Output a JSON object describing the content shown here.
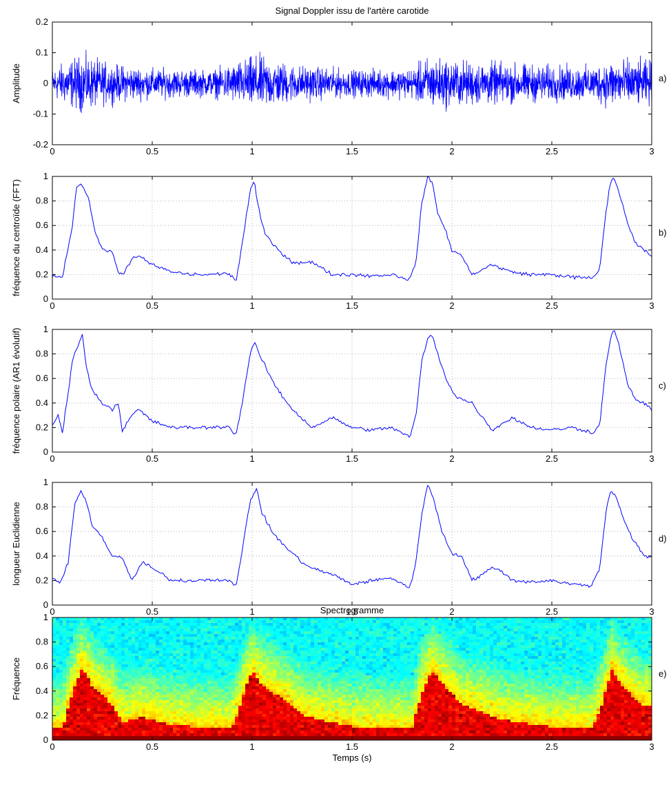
{
  "figure": {
    "title": "Signal Doppler issu de l'artère carotide",
    "xlabel": "Temps (s)"
  },
  "colors": {
    "line": "#0000ff",
    "grid": "#a0a0a0",
    "axes": "#000000"
  },
  "chart_data": [
    {
      "id": "a",
      "type": "line",
      "panel_label": "a)",
      "title": "Signal Doppler issu de l'artère carotide",
      "xlabel": "",
      "ylabel": "Amplitude",
      "xlim": [
        0,
        3
      ],
      "ylim": [
        -0.2,
        0.2
      ],
      "xticks": [
        0,
        0.5,
        1,
        1.5,
        2,
        2.5,
        3
      ],
      "yticks": [
        -0.2,
        -0.1,
        0,
        0.1,
        0.2
      ],
      "grid": false,
      "signal": "noise-like Doppler signal, envelope peaks near 0.15 at systole (~0.15 s, 1.0 s, 1.9 s, 2.8 s)",
      "envelope": {
        "x": [
          0,
          0.1,
          0.15,
          0.3,
          0.5,
          0.8,
          0.95,
          1.02,
          1.2,
          1.5,
          1.8,
          1.88,
          2.05,
          2.4,
          2.7,
          2.8,
          3.0
        ],
        "y": [
          0.08,
          0.13,
          0.15,
          0.1,
          0.08,
          0.07,
          0.12,
          0.15,
          0.1,
          0.07,
          0.08,
          0.14,
          0.12,
          0.1,
          0.09,
          0.13,
          0.12
        ]
      }
    },
    {
      "id": "b",
      "type": "line",
      "panel_label": "b)",
      "xlabel": "",
      "ylabel": "fréquence du centroïde (FFT)",
      "xlim": [
        0,
        3
      ],
      "ylim": [
        0,
        1
      ],
      "xticks": [
        0,
        0.5,
        1,
        1.5,
        2,
        2.5,
        3
      ],
      "yticks": [
        0,
        0.2,
        0.4,
        0.6,
        0.8,
        1
      ],
      "grid": true,
      "x": [
        0,
        0.05,
        0.1,
        0.12,
        0.14,
        0.18,
        0.22,
        0.26,
        0.3,
        0.33,
        0.35,
        0.4,
        0.43,
        0.5,
        0.6,
        0.7,
        0.8,
        0.88,
        0.92,
        0.95,
        0.99,
        1.01,
        1.03,
        1.06,
        1.1,
        1.2,
        1.3,
        1.4,
        1.5,
        1.6,
        1.7,
        1.79,
        1.82,
        1.85,
        1.88,
        1.9,
        1.93,
        1.97,
        2.0,
        2.05,
        2.1,
        2.2,
        2.3,
        2.4,
        2.5,
        2.6,
        2.71,
        2.74,
        2.77,
        2.79,
        2.81,
        2.84,
        2.88,
        2.92,
        2.96,
        3.0
      ],
      "y": [
        0.19,
        0.18,
        0.6,
        0.9,
        0.95,
        0.83,
        0.5,
        0.4,
        0.38,
        0.22,
        0.2,
        0.33,
        0.35,
        0.28,
        0.22,
        0.2,
        0.2,
        0.21,
        0.15,
        0.45,
        0.88,
        0.97,
        0.75,
        0.55,
        0.45,
        0.3,
        0.3,
        0.2,
        0.2,
        0.19,
        0.2,
        0.16,
        0.3,
        0.8,
        1.0,
        0.95,
        0.7,
        0.55,
        0.4,
        0.35,
        0.2,
        0.28,
        0.22,
        0.2,
        0.2,
        0.18,
        0.17,
        0.25,
        0.7,
        0.92,
        1.0,
        0.85,
        0.62,
        0.45,
        0.4,
        0.35
      ]
    },
    {
      "id": "c",
      "type": "line",
      "panel_label": "c)",
      "xlabel": "",
      "ylabel": "fréquence polaire (AR1 évolutif)",
      "xlim": [
        0,
        3
      ],
      "ylim": [
        0,
        1
      ],
      "xticks": [
        0,
        0.5,
        1,
        1.5,
        2,
        2.5,
        3
      ],
      "yticks": [
        0,
        0.2,
        0.4,
        0.6,
        0.8,
        1
      ],
      "grid": true,
      "x": [
        0,
        0.03,
        0.05,
        0.08,
        0.1,
        0.13,
        0.15,
        0.17,
        0.2,
        0.25,
        0.3,
        0.33,
        0.35,
        0.4,
        0.43,
        0.5,
        0.6,
        0.7,
        0.8,
        0.88,
        0.92,
        0.95,
        0.99,
        1.01,
        1.04,
        1.08,
        1.13,
        1.2,
        1.3,
        1.4,
        1.5,
        1.6,
        1.7,
        1.79,
        1.82,
        1.85,
        1.88,
        1.9,
        1.93,
        1.97,
        2.02,
        2.1,
        2.2,
        2.3,
        2.4,
        2.5,
        2.6,
        2.71,
        2.74,
        2.77,
        2.79,
        2.81,
        2.84,
        2.88,
        2.92,
        2.96,
        3.0
      ],
      "y": [
        0.22,
        0.3,
        0.15,
        0.5,
        0.75,
        0.88,
        0.95,
        0.7,
        0.5,
        0.4,
        0.35,
        0.4,
        0.18,
        0.3,
        0.35,
        0.25,
        0.2,
        0.2,
        0.2,
        0.21,
        0.14,
        0.4,
        0.8,
        0.9,
        0.78,
        0.65,
        0.5,
        0.35,
        0.2,
        0.28,
        0.2,
        0.18,
        0.2,
        0.12,
        0.3,
        0.75,
        0.93,
        0.95,
        0.8,
        0.6,
        0.45,
        0.4,
        0.18,
        0.28,
        0.2,
        0.18,
        0.2,
        0.16,
        0.22,
        0.7,
        0.9,
        1.0,
        0.85,
        0.55,
        0.42,
        0.4,
        0.35
      ]
    },
    {
      "id": "d",
      "type": "line",
      "panel_label": "d)",
      "xlabel": "",
      "ylabel": "longueur Euclidienne",
      "xlim": [
        0,
        3
      ],
      "ylim": [
        0,
        1
      ],
      "xticks": [
        0,
        0.5,
        1,
        1.5,
        2,
        2.5,
        3
      ],
      "yticks": [
        0,
        0.2,
        0.4,
        0.6,
        0.8,
        1
      ],
      "grid": true,
      "x": [
        0,
        0.04,
        0.08,
        0.11,
        0.14,
        0.17,
        0.2,
        0.25,
        0.3,
        0.35,
        0.4,
        0.45,
        0.5,
        0.6,
        0.7,
        0.8,
        0.88,
        0.92,
        0.95,
        0.99,
        1.02,
        1.05,
        1.1,
        1.15,
        1.25,
        1.3,
        1.4,
        1.5,
        1.6,
        1.7,
        1.79,
        1.82,
        1.85,
        1.88,
        1.91,
        1.95,
        2.0,
        2.05,
        2.1,
        2.2,
        2.25,
        2.3,
        2.4,
        2.5,
        2.6,
        2.7,
        2.74,
        2.77,
        2.79,
        2.82,
        2.86,
        2.9,
        2.94,
        2.98,
        3.0
      ],
      "y": [
        0.22,
        0.18,
        0.35,
        0.8,
        0.93,
        0.85,
        0.65,
        0.55,
        0.4,
        0.38,
        0.2,
        0.35,
        0.3,
        0.2,
        0.2,
        0.21,
        0.2,
        0.15,
        0.45,
        0.85,
        0.95,
        0.75,
        0.6,
        0.5,
        0.35,
        0.3,
        0.25,
        0.17,
        0.2,
        0.22,
        0.14,
        0.35,
        0.75,
        1.0,
        0.85,
        0.6,
        0.42,
        0.4,
        0.2,
        0.3,
        0.28,
        0.2,
        0.19,
        0.2,
        0.17,
        0.16,
        0.3,
        0.75,
        0.92,
        0.9,
        0.7,
        0.55,
        0.45,
        0.38,
        0.4
      ]
    },
    {
      "id": "e",
      "type": "heatmap",
      "panel_label": "e)",
      "title": "Spectrogramme",
      "xlabel": "Temps (s)",
      "ylabel": "Fréquence",
      "xlim": [
        0,
        3
      ],
      "ylim": [
        0,
        1
      ],
      "xticks": [
        0,
        0.5,
        1,
        1.5,
        2,
        2.5,
        3
      ],
      "yticks": [
        0,
        0.2,
        0.4,
        0.6,
        0.8,
        1
      ],
      "grid": false,
      "colormap": "jet",
      "high_energy_boundary": {
        "x": [
          0,
          0.05,
          0.1,
          0.15,
          0.2,
          0.3,
          0.35,
          0.45,
          0.55,
          0.7,
          0.9,
          0.95,
          1.0,
          1.05,
          1.15,
          1.25,
          1.35,
          1.5,
          1.8,
          1.85,
          1.9,
          1.95,
          2.05,
          2.2,
          2.35,
          2.5,
          2.7,
          2.75,
          2.8,
          2.85,
          2.95,
          3.0
        ],
        "y": [
          0.1,
          0.1,
          0.4,
          0.6,
          0.45,
          0.3,
          0.15,
          0.2,
          0.15,
          0.12,
          0.1,
          0.35,
          0.58,
          0.45,
          0.35,
          0.22,
          0.17,
          0.12,
          0.1,
          0.4,
          0.58,
          0.48,
          0.3,
          0.2,
          0.15,
          0.12,
          0.1,
          0.3,
          0.58,
          0.45,
          0.3,
          0.28
        ]
      }
    }
  ]
}
